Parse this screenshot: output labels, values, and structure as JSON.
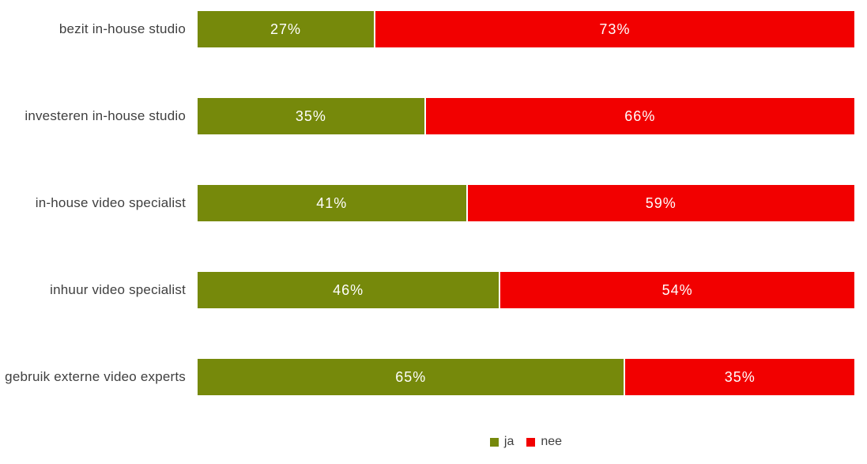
{
  "chart_data": {
    "type": "bar",
    "orientation": "horizontal",
    "stacked": true,
    "stacked_100_percent": true,
    "unit": "%",
    "title": "",
    "xlabel": "",
    "ylabel": "",
    "grid": false,
    "background_color": "#FFFFFF",
    "category_label_color": "#3F3F3F",
    "value_label_color": "#FFFFFF",
    "categories": [
      "bezit in-house studio",
      "investeren in-house studio",
      "in-house video specialist",
      "inhuur video specialist",
      "gebruik externe video experts"
    ],
    "series": [
      {
        "name": "ja",
        "color": "#76890B",
        "values": [
          27,
          35,
          41,
          46,
          65
        ],
        "labels": [
          "27%",
          "35%",
          "41%",
          "46%",
          "65%"
        ]
      },
      {
        "name": "nee",
        "color": "#F20000",
        "values": [
          73,
          66,
          59,
          54,
          35
        ],
        "labels": [
          "73%",
          "66%",
          "59%",
          "54%",
          "35%"
        ]
      }
    ],
    "legend": {
      "position": "bottom-center",
      "entries": [
        {
          "label": "ja",
          "color": "#76890B"
        },
        {
          "label": "nee",
          "color": "#F20000"
        }
      ]
    }
  }
}
